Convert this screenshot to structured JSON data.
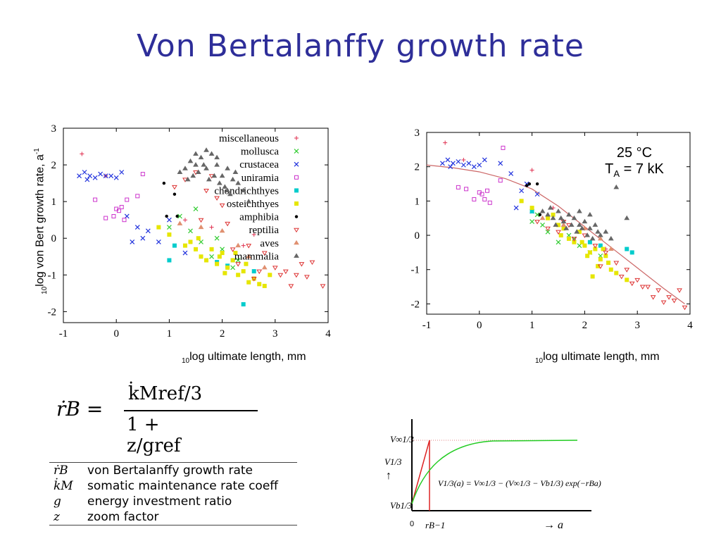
{
  "title": "Von Bertalanffy growth rate",
  "left_chart": {
    "ylabel_sub": "10",
    "ylabel": "log von Bert growth rate, a",
    "ylabel_sup": "-1",
    "xlabel_sub": "10",
    "xlabel": "log ultimate length, mm"
  },
  "right_chart": {
    "xlabel_sub": "10",
    "xlabel": "log ultimate length, mm",
    "annotation_temp": "25 °C",
    "annotation_ta_main": "T",
    "annotation_ta_sub": "A",
    "annotation_ta_rest": " = 7 kK"
  },
  "formula": {
    "lhs": "ṙB =",
    "numerator": "k̇Mref/3",
    "denominator": "1 + z/gref"
  },
  "symbols": [
    {
      "symbol": "ṙB",
      "desc": "von Bertalanffy growth rate"
    },
    {
      "symbol": "k̇M",
      "desc": "somatic maintenance rate coeff"
    },
    {
      "symbol": "g",
      "desc": "energy investment ratio"
    },
    {
      "symbol": "z",
      "desc": "zoom factor"
    }
  ],
  "sketch": {
    "v_inf": "V∞1/3",
    "v_axis": "V1/3",
    "v_b": "Vb1/3",
    "zero": "0",
    "r_inv": "rB−1",
    "a_axis": "→ a",
    "equation": "V1/3(a) = V∞1/3 − (V∞1/3 − Vb1/3) exp(−rBa)"
  },
  "chart_data": [
    {
      "type": "scatter",
      "xlim": [
        -1,
        4
      ],
      "ylim": [
        -2.3,
        3
      ],
      "xticks": [
        -1,
        0,
        1,
        2,
        3,
        4
      ],
      "yticks": [
        -2,
        -1,
        0,
        1,
        2,
        3
      ],
      "legend_position": "top-right",
      "series": [
        {
          "name": "miscellaneous",
          "color": "#e03050",
          "marker": "plus",
          "x": [
            -0.65,
            -0.2,
            1.3,
            1.8,
            2.4,
            2.6
          ],
          "y": [
            2.3,
            1.7,
            0.5,
            0.3,
            -0.2,
            0.1
          ]
        },
        {
          "name": "mollusca",
          "color": "#33cc33",
          "marker": "x",
          "x": [
            1.0,
            1.2,
            1.4,
            1.6,
            1.8,
            2.0,
            2.2,
            1.5,
            1.9,
            2.3
          ],
          "y": [
            0.3,
            0.6,
            0.2,
            -0.1,
            -0.5,
            -0.3,
            -0.8,
            0.8,
            0.0,
            -0.6
          ]
        },
        {
          "name": "crustacea",
          "color": "#2233dd",
          "marker": "x",
          "x": [
            -0.7,
            -0.6,
            -0.5,
            -0.4,
            -0.3,
            -0.2,
            -0.1,
            0.0,
            0.1,
            -0.55,
            0.2,
            0.5,
            0.6,
            0.8,
            1.0,
            0.3,
            0.4,
            1.3
          ],
          "y": [
            1.7,
            1.8,
            1.7,
            1.65,
            1.75,
            1.7,
            1.7,
            1.65,
            1.8,
            1.6,
            0.6,
            0.0,
            0.2,
            -0.1,
            0.5,
            -0.1,
            0.3,
            -0.4
          ]
        },
        {
          "name": "uniramia",
          "color": "#cc33cc",
          "marker": "square",
          "x": [
            -0.4,
            -0.2,
            0.0,
            0.05,
            0.1,
            0.2,
            0.4,
            0.5,
            -0.05,
            0.15
          ],
          "y": [
            1.05,
            0.55,
            0.8,
            0.75,
            0.85,
            1.05,
            1.15,
            1.75,
            0.6,
            0.5
          ]
        },
        {
          "name": "chondrichthyes",
          "color": "#00cccc",
          "marker": "square",
          "x": [
            1.0,
            1.1,
            1.9,
            2.1,
            2.2,
            2.4,
            2.6
          ],
          "y": [
            -0.6,
            -0.2,
            -0.65,
            -0.75,
            -0.6,
            -1.8,
            -0.9
          ]
        },
        {
          "name": "osteichthyes",
          "color": "#e6e600",
          "marker": "square",
          "x": [
            0.8,
            1.0,
            1.3,
            1.5,
            1.6,
            1.7,
            1.8,
            1.9,
            2.0,
            2.1,
            2.2,
            2.3,
            2.4,
            2.5,
            2.6,
            2.8,
            2.9,
            1.4,
            1.55,
            1.95,
            2.05,
            2.25,
            2.45,
            2.7
          ],
          "y": [
            0.3,
            0.1,
            -0.2,
            -0.3,
            -0.5,
            -0.6,
            -0.3,
            -0.7,
            -0.4,
            -0.8,
            -0.6,
            -1.0,
            -0.9,
            -1.2,
            -1.1,
            -1.3,
            -1.0,
            -0.1,
            0.0,
            -0.5,
            -0.95,
            -0.4,
            -0.7,
            -1.25
          ]
        },
        {
          "name": "amphibia",
          "color": "#000000",
          "marker": "dot",
          "x": [
            0.9,
            0.95,
            1.1,
            1.15
          ],
          "y": [
            1.5,
            0.6,
            1.2,
            0.6
          ]
        },
        {
          "name": "reptilia",
          "color": "#dd3333",
          "marker": "triangle-down",
          "x": [
            1.1,
            1.3,
            1.5,
            1.7,
            1.8,
            2.0,
            2.1,
            2.3,
            2.5,
            2.7,
            2.8,
            3.0,
            3.2,
            3.4,
            3.6,
            3.7,
            3.9,
            1.6,
            1.9,
            2.2,
            2.6,
            3.1,
            3.3,
            3.5
          ],
          "y": [
            1.4,
            1.6,
            1.8,
            1.3,
            1.7,
            0.9,
            0.4,
            -0.7,
            -0.2,
            -0.9,
            -0.4,
            -0.8,
            -0.9,
            -1.0,
            -1.05,
            -0.65,
            -1.3,
            0.5,
            1.1,
            -0.3,
            -1.1,
            -1.0,
            -1.3,
            -0.7
          ]
        },
        {
          "name": "aves",
          "color": "#e09070",
          "marker": "triangle-up",
          "x": [
            1.2,
            1.6,
            2.0,
            2.3,
            2.5,
            2.8
          ],
          "y": [
            0.4,
            0.3,
            0.2,
            -0.2,
            -0.5,
            -0.8
          ]
        },
        {
          "name": "mammalia",
          "color": "#666666",
          "marker": "triangle-up",
          "x": [
            1.2,
            1.3,
            1.4,
            1.5,
            1.6,
            1.7,
            1.8,
            1.9,
            2.0,
            2.1,
            2.2,
            2.3,
            2.4,
            2.5,
            1.35,
            1.45,
            1.55,
            1.65,
            1.75,
            1.85,
            1.95,
            2.05,
            2.15,
            2.25,
            1.5,
            1.7,
            1.9,
            2.1
          ],
          "y": [
            1.8,
            1.9,
            2.1,
            2.0,
            2.2,
            1.9,
            2.3,
            2.0,
            1.7,
            1.9,
            1.6,
            1.5,
            1.3,
            1.0,
            1.6,
            1.7,
            1.8,
            2.0,
            1.6,
            1.7,
            1.5,
            1.4,
            1.2,
            1.8,
            2.3,
            2.4,
            2.2,
            1.3
          ]
        }
      ]
    },
    {
      "type": "scatter",
      "xlim": [
        -1,
        4
      ],
      "ylim": [
        -2.3,
        3
      ],
      "xticks": [
        -1,
        0,
        1,
        2,
        3,
        4
      ],
      "yticks": [
        -2,
        -1,
        0,
        1,
        2,
        3
      ],
      "series": [
        {
          "name": "miscellaneous",
          "color": "#e03050",
          "marker": "plus",
          "x": [
            -0.65,
            -0.3,
            1.0,
            1.4,
            2.0,
            2.4
          ],
          "y": [
            2.7,
            2.2,
            1.9,
            0.8,
            0.2,
            -0.4
          ]
        },
        {
          "name": "mollusca",
          "color": "#33cc33",
          "marker": "x",
          "x": [
            1.0,
            1.2,
            1.3,
            1.5,
            1.7,
            1.9,
            2.1,
            1.1,
            1.8,
            2.3
          ],
          "y": [
            0.4,
            0.3,
            0.1,
            -0.2,
            0.0,
            -0.3,
            -0.5,
            0.6,
            -0.1,
            -0.6
          ]
        },
        {
          "name": "crustacea",
          "color": "#2233dd",
          "marker": "x",
          "x": [
            -0.7,
            -0.6,
            -0.5,
            -0.4,
            -0.3,
            -0.2,
            -0.1,
            0.0,
            0.1,
            -0.55,
            0.4,
            0.6,
            0.8,
            0.9,
            1.1,
            0.7,
            1.0
          ],
          "y": [
            2.1,
            2.2,
            2.1,
            2.15,
            2.05,
            2.1,
            2.0,
            2.05,
            2.2,
            2.0,
            2.1,
            1.8,
            1.3,
            1.5,
            1.2,
            0.8,
            0.7
          ]
        },
        {
          "name": "uniramia",
          "color": "#cc33cc",
          "marker": "square",
          "x": [
            -0.4,
            -0.25,
            0.0,
            0.05,
            0.1,
            0.2,
            0.4,
            0.45,
            -0.1,
            0.15
          ],
          "y": [
            1.4,
            1.35,
            1.25,
            1.2,
            1.05,
            0.95,
            1.6,
            2.55,
            1.05,
            1.3
          ]
        },
        {
          "name": "chondrichthyes",
          "color": "#00cccc",
          "marker": "square",
          "x": [
            1.0,
            2.1,
            2.3,
            2.8,
            2.9
          ],
          "y": [
            0.7,
            -0.2,
            -0.3,
            -0.4,
            -0.5
          ]
        },
        {
          "name": "osteichthyes",
          "color": "#e6e600",
          "marker": "square",
          "x": [
            0.8,
            1.0,
            1.3,
            1.5,
            1.6,
            1.7,
            1.8,
            1.9,
            2.0,
            2.1,
            2.2,
            2.3,
            2.4,
            2.5,
            2.6,
            2.8,
            1.4,
            1.55,
            1.95,
            2.05,
            2.25,
            2.45,
            2.15,
            2.35
          ],
          "y": [
            1.0,
            0.8,
            0.5,
            0.3,
            0.2,
            -0.1,
            -0.2,
            0.1,
            -0.3,
            -0.5,
            -0.4,
            -0.7,
            -0.6,
            -1.0,
            -1.1,
            -1.3,
            0.6,
            0.0,
            -0.2,
            -0.6,
            -0.9,
            -0.8,
            -1.2,
            -0.4
          ]
        },
        {
          "name": "amphibia",
          "color": "#000000",
          "marker": "dot",
          "x": [
            0.9,
            0.95,
            1.1,
            1.15
          ],
          "y": [
            1.45,
            1.5,
            1.5,
            0.6
          ]
        },
        {
          "name": "reptilia",
          "color": "#dd3333",
          "marker": "triangle-down",
          "x": [
            1.1,
            1.3,
            1.5,
            1.7,
            1.8,
            2.0,
            2.2,
            2.4,
            2.6,
            2.8,
            3.0,
            3.2,
            3.4,
            3.6,
            3.8,
            3.9,
            2.7,
            2.9,
            3.1,
            3.3,
            3.5,
            3.7,
            1.6,
            2.3
          ],
          "y": [
            0.4,
            0.2,
            0.1,
            0.3,
            -0.1,
            0.0,
            -0.3,
            -0.5,
            -0.8,
            -1.0,
            -1.3,
            -1.5,
            -1.6,
            -1.8,
            -1.6,
            -2.1,
            -1.2,
            -1.4,
            -1.5,
            -1.8,
            -1.95,
            -1.9,
            0.4,
            -0.9
          ]
        },
        {
          "name": "aves",
          "color": "#e09070",
          "marker": "triangle-up",
          "x": [
            1.2,
            1.6,
            2.0,
            2.3,
            2.5
          ],
          "y": [
            0.5,
            0.3,
            0.2,
            -0.1,
            -0.4
          ]
        },
        {
          "name": "mammalia",
          "color": "#666666",
          "marker": "triangle-up",
          "x": [
            1.2,
            1.3,
            1.4,
            1.5,
            1.6,
            1.7,
            1.8,
            1.9,
            2.0,
            2.1,
            2.2,
            2.3,
            2.4,
            2.5,
            1.35,
            1.45,
            1.55,
            1.65,
            1.75,
            1.85,
            1.95,
            2.05,
            2.15,
            2.25,
            2.6,
            2.8,
            1.9,
            2.1
          ],
          "y": [
            0.7,
            0.6,
            0.5,
            0.7,
            0.4,
            0.6,
            0.5,
            0.3,
            0.4,
            0.2,
            0.3,
            0.0,
            0.1,
            -0.1,
            0.8,
            0.3,
            0.5,
            0.2,
            0.3,
            0.1,
            0.2,
            0.0,
            -0.1,
            0.1,
            1.4,
            0.5,
            0.7,
            0.6
          ]
        }
      ],
      "fit_curve": {
        "color": "#cc6666",
        "x": [
          -1,
          -0.5,
          0,
          0.5,
          1,
          1.5,
          2,
          2.5,
          3,
          3.5,
          3.9
        ],
        "y": [
          2.05,
          1.97,
          1.85,
          1.65,
          1.35,
          0.85,
          0.25,
          -0.35,
          -0.95,
          -1.55,
          -2.0
        ]
      }
    }
  ]
}
